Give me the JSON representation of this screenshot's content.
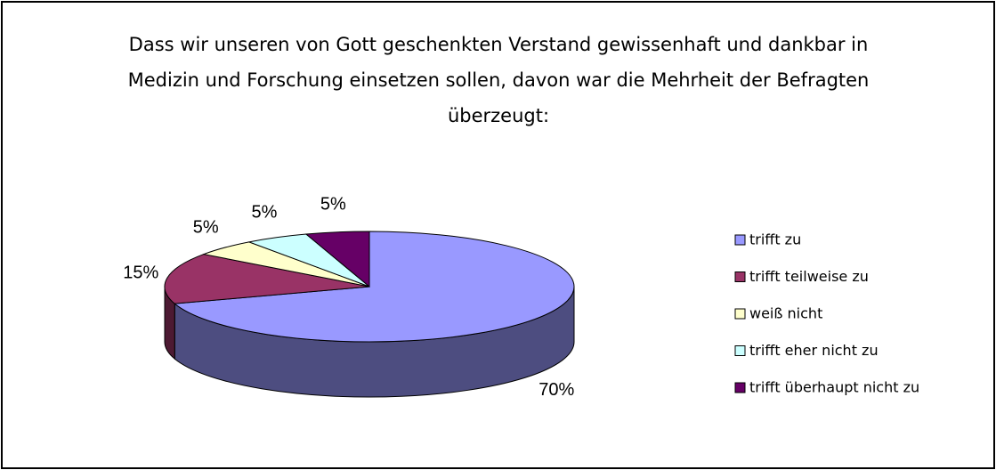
{
  "chart_data": {
    "type": "pie",
    "title": "Dass wir unseren von Gott geschenkten Verstand gewissenhaft und dankbar in Medizin und Forschung einsetzen sollen, davon war die Mehrheit der Befragten überzeugt:",
    "categories": [
      "trifft zu",
      "trifft teilweise zu",
      "weiß nicht",
      "trifft eher nicht zu",
      "trifft überhaupt nicht zu"
    ],
    "values": [
      70,
      15,
      5,
      5,
      5
    ],
    "value_labels": [
      "70%",
      "15%",
      "5%",
      "5%",
      "5%"
    ],
    "colors": [
      "#9999ff",
      "#993366",
      "#ffffcc",
      "#ccffff",
      "#660066"
    ],
    "legend": "right"
  }
}
